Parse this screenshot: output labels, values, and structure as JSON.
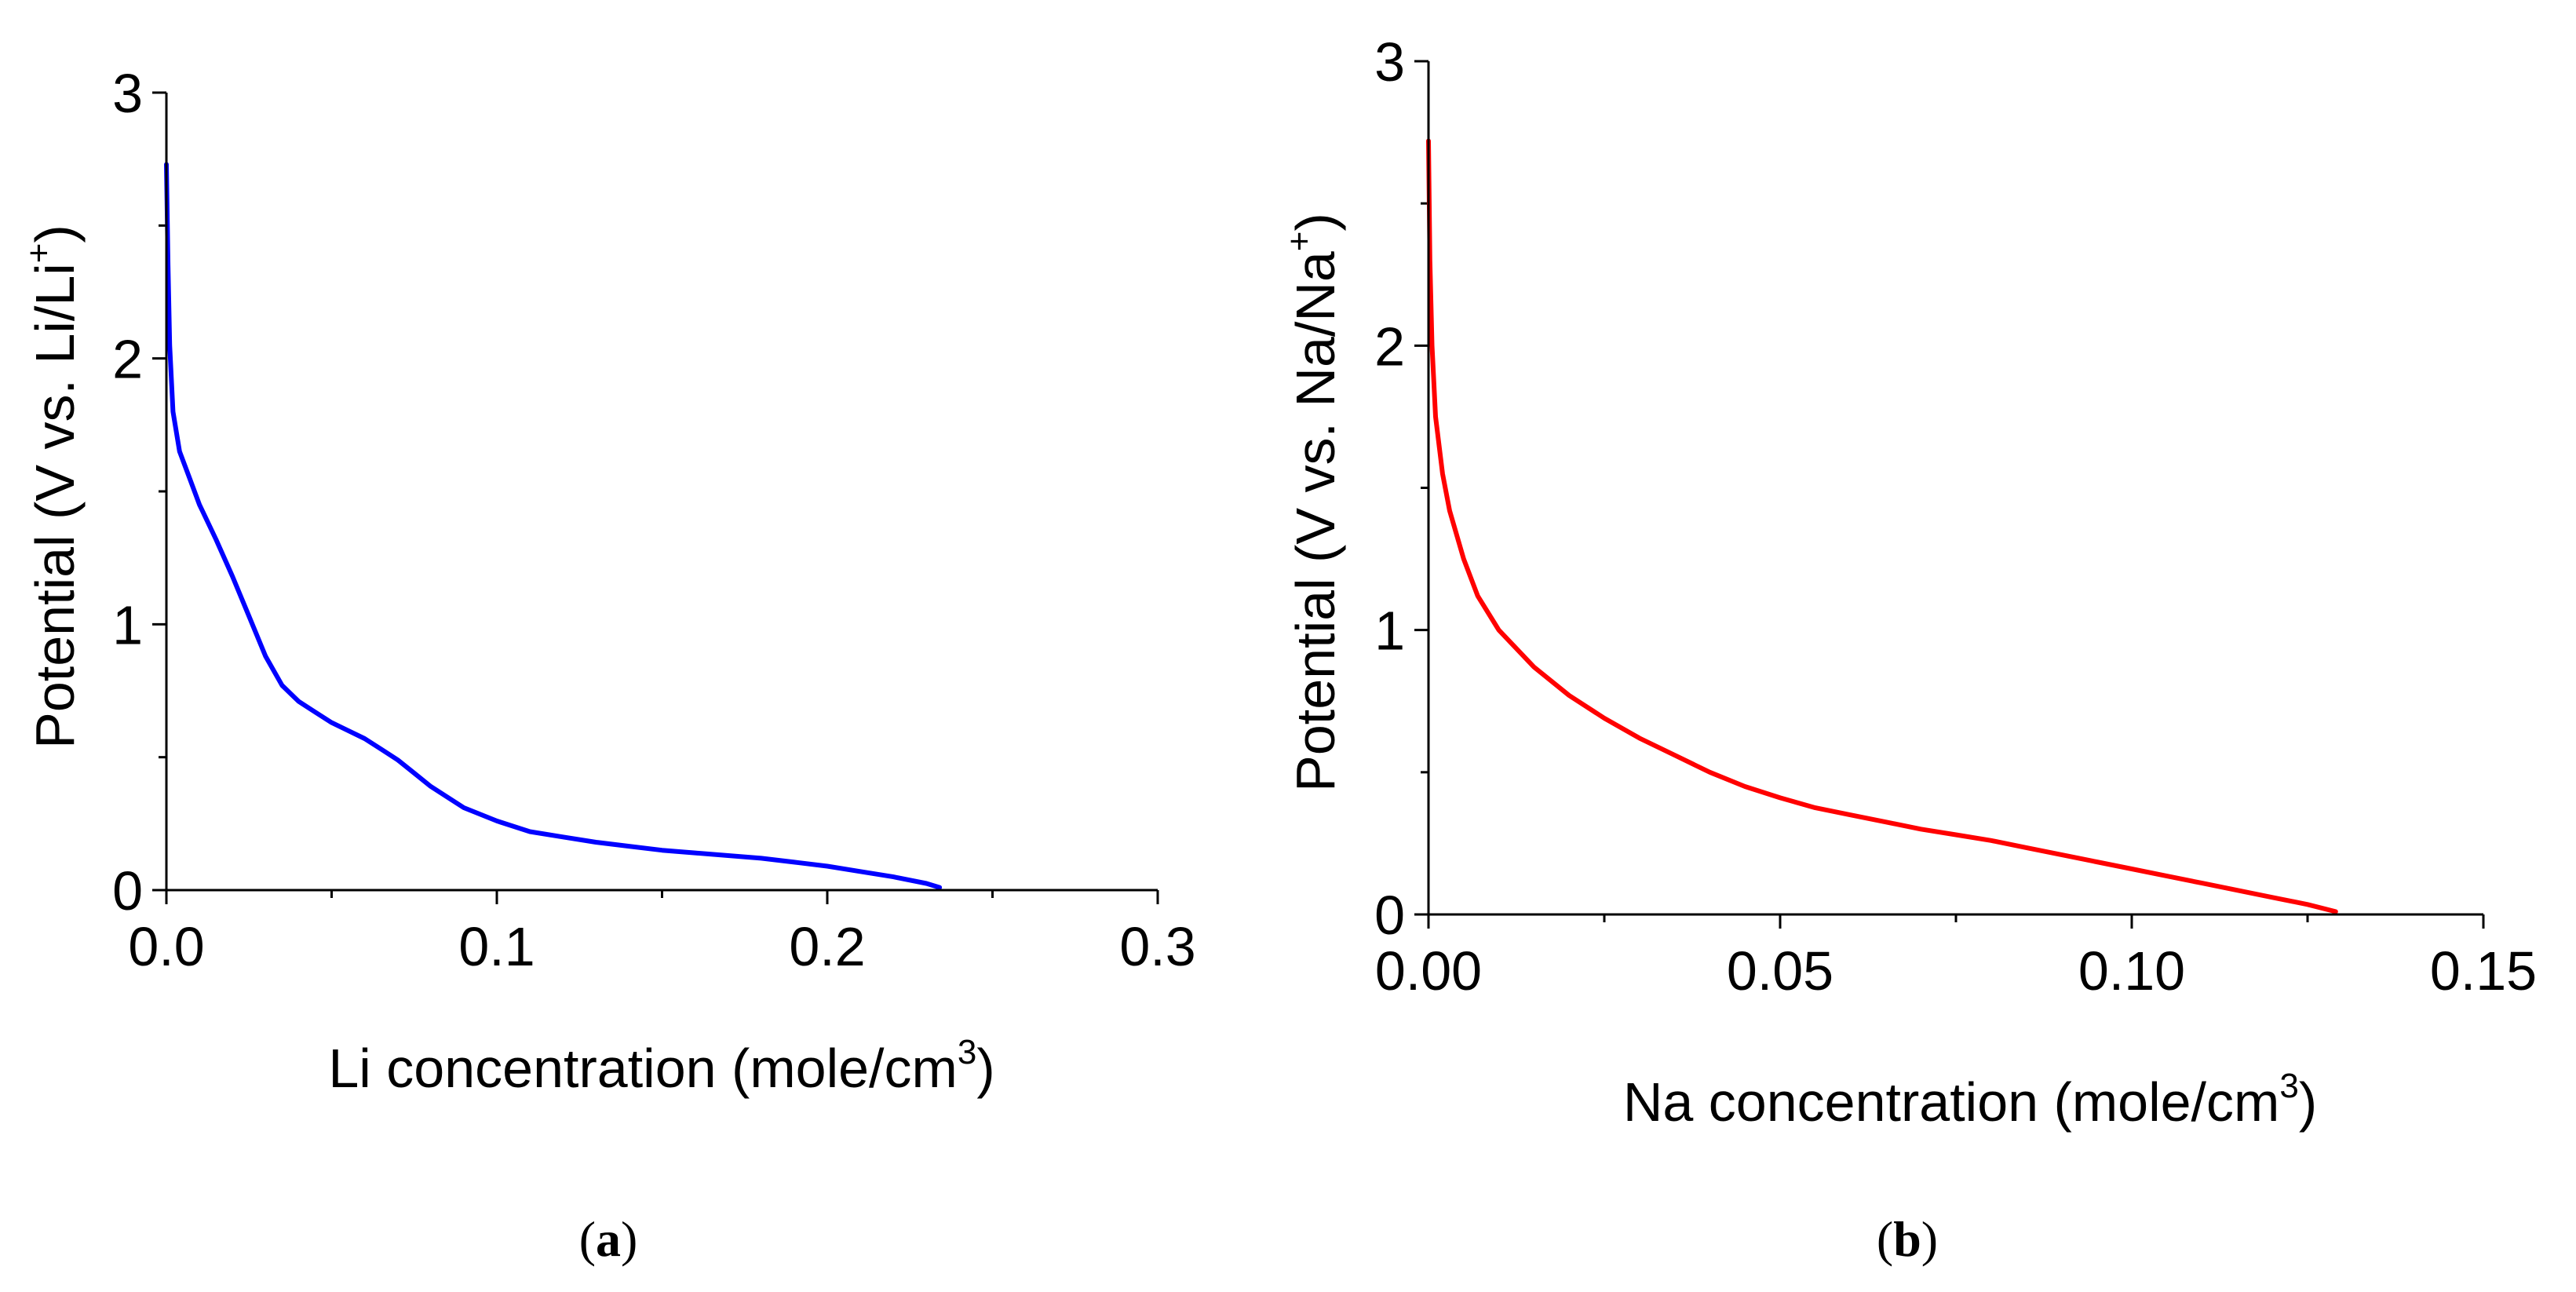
{
  "chart_data": [
    {
      "type": "line",
      "panel": "a",
      "caption": {
        "open": "(",
        "label": "a",
        "close": ")"
      },
      "xlabel": {
        "text": "Li concentration (mole/cm",
        "sup": "3",
        "tail": ")"
      },
      "ylabel": {
        "text": "Potential (V vs. Li/Li",
        "sup": "+",
        "tail": ")"
      },
      "xlim": [
        0,
        0.3
      ],
      "ylim": [
        0,
        3
      ],
      "xticks": [
        0,
        0.1,
        0.2,
        0.3
      ],
      "xtick_labels": [
        "0.0",
        "0.1",
        "0.2",
        "0.3"
      ],
      "xminor": [
        0.05,
        0.15,
        0.25
      ],
      "yticks": [
        0,
        1,
        2,
        3
      ],
      "ytick_labels": [
        "0",
        "1",
        "2",
        "3"
      ],
      "yminor": [
        0.5,
        1.5,
        2.5
      ],
      "series": [
        {
          "name": "Li",
          "color": "#0000ff",
          "x": [
            0,
            0.0005,
            0.001,
            0.002,
            0.004,
            0.007,
            0.01,
            0.015,
            0.02,
            0.025,
            0.03,
            0.035,
            0.04,
            0.045,
            0.05,
            0.055,
            0.06,
            0.065,
            0.07,
            0.075,
            0.08,
            0.09,
            0.1,
            0.11,
            0.12,
            0.13,
            0.14,
            0.15,
            0.16,
            0.17,
            0.18,
            0.19,
            0.2,
            0.21,
            0.22,
            0.23,
            0.234
          ],
          "y": [
            2.73,
            2.35,
            2.05,
            1.8,
            1.65,
            1.55,
            1.45,
            1.32,
            1.18,
            1.03,
            0.88,
            0.77,
            0.71,
            0.67,
            0.63,
            0.6,
            0.57,
            0.53,
            0.49,
            0.44,
            0.39,
            0.31,
            0.26,
            0.22,
            0.2,
            0.18,
            0.165,
            0.15,
            0.14,
            0.13,
            0.12,
            0.105,
            0.09,
            0.07,
            0.05,
            0.025,
            0.01
          ]
        }
      ]
    },
    {
      "type": "line",
      "panel": "b",
      "caption": {
        "open": "(",
        "label": "b",
        "close": ")"
      },
      "xlabel": {
        "text": "Na concentration (mole/cm",
        "sup": "3",
        "tail": ")"
      },
      "ylabel": {
        "text": "Potential (V vs. Na/Na",
        "sup": "+",
        "tail": ")"
      },
      "xlim": [
        0,
        0.15
      ],
      "ylim": [
        0,
        3
      ],
      "xticks": [
        0,
        0.05,
        0.1,
        0.15
      ],
      "xtick_labels": [
        "0.00",
        "0.05",
        "0.10",
        "0.15"
      ],
      "xminor": [
        0.025,
        0.075,
        0.125
      ],
      "yticks": [
        0,
        1,
        2,
        3
      ],
      "ytick_labels": [
        "0",
        "1",
        "2",
        "3"
      ],
      "yminor": [
        0.5,
        1.5,
        2.5
      ],
      "series": [
        {
          "name": "Na",
          "color": "#ff0000",
          "x": [
            0,
            0.0002,
            0.0005,
            0.001,
            0.002,
            0.003,
            0.005,
            0.007,
            0.01,
            0.015,
            0.02,
            0.025,
            0.03,
            0.035,
            0.04,
            0.045,
            0.05,
            0.055,
            0.06,
            0.065,
            0.07,
            0.075,
            0.08,
            0.085,
            0.09,
            0.095,
            0.1,
            0.105,
            0.11,
            0.115,
            0.12,
            0.125,
            0.129
          ],
          "y": [
            2.72,
            2.3,
            2.0,
            1.75,
            1.55,
            1.42,
            1.25,
            1.12,
            1.0,
            0.87,
            0.77,
            0.69,
            0.62,
            0.56,
            0.5,
            0.45,
            0.41,
            0.375,
            0.35,
            0.325,
            0.3,
            0.28,
            0.26,
            0.235,
            0.21,
            0.185,
            0.16,
            0.135,
            0.11,
            0.085,
            0.06,
            0.035,
            0.01
          ]
        }
      ]
    }
  ]
}
